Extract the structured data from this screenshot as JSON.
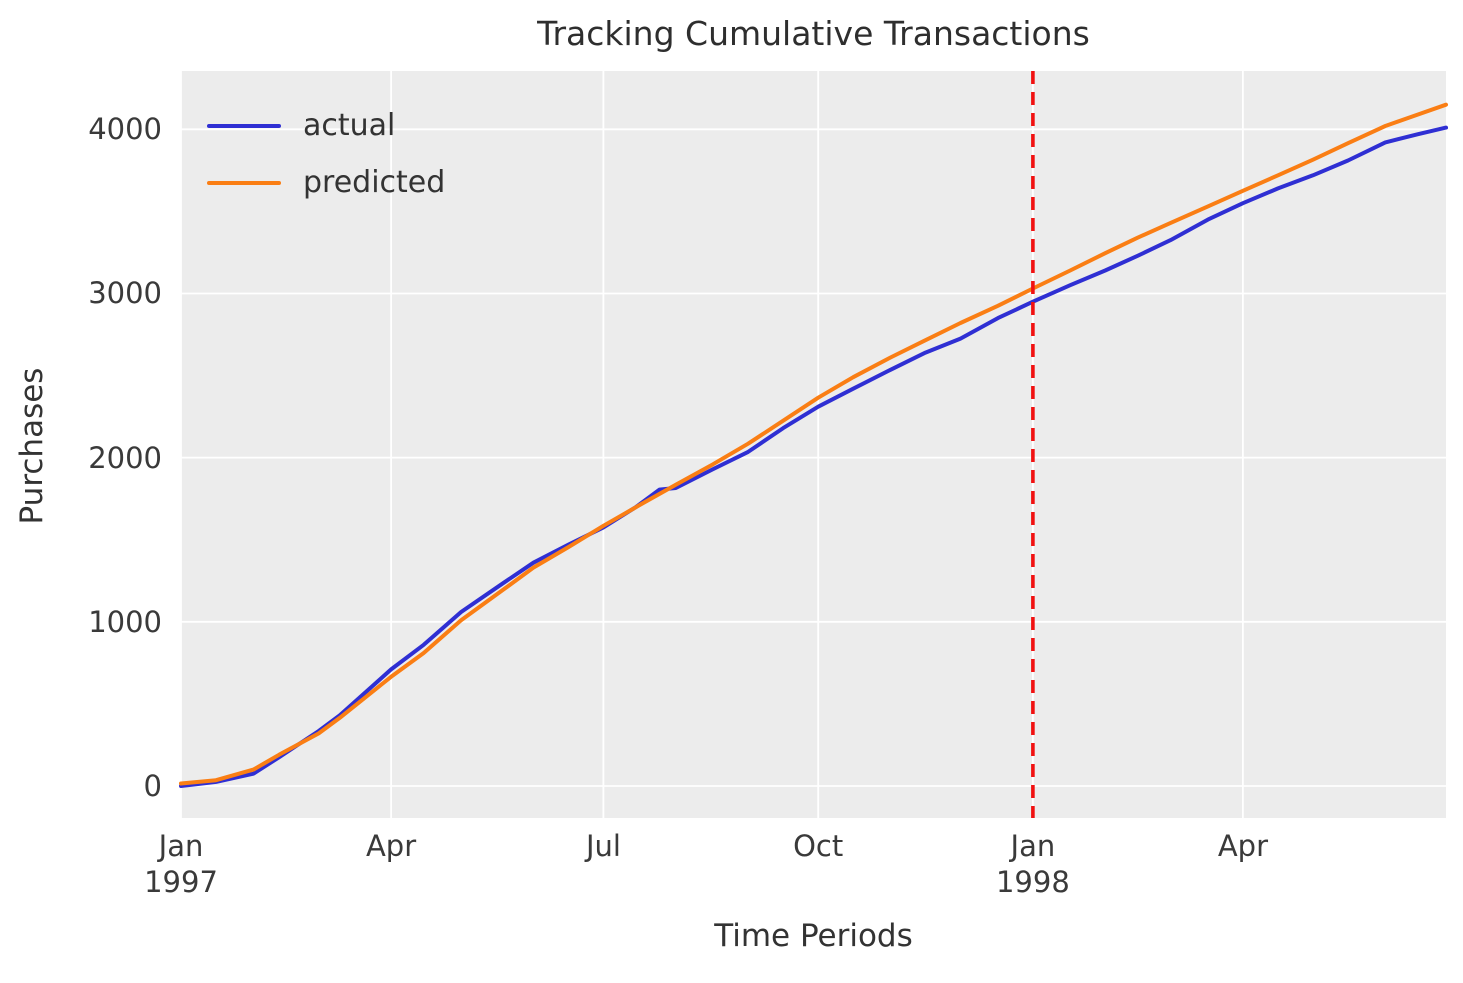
{
  "chart_data": {
    "type": "line",
    "title": "Tracking Cumulative Transactions",
    "xlabel": "Time Periods",
    "ylabel": "Purchases",
    "plot_bg": "#ececec",
    "grid_color": "#ffffff",
    "grid": true,
    "x_unit": "days since Jan 1 1997",
    "x_range_days": [
      0,
      542
    ],
    "ylim": [
      -195,
      4355
    ],
    "y_ticks": [
      0,
      1000,
      2000,
      3000,
      4000
    ],
    "x_ticks": [
      {
        "day": 0,
        "label": "Jan",
        "sublabel": "1997"
      },
      {
        "day": 90,
        "label": "Apr",
        "sublabel": ""
      },
      {
        "day": 181,
        "label": "Jul",
        "sublabel": ""
      },
      {
        "day": 273,
        "label": "Oct",
        "sublabel": ""
      },
      {
        "day": 365,
        "label": "Jan",
        "sublabel": "1998"
      },
      {
        "day": 455,
        "label": "Apr",
        "sublabel": ""
      }
    ],
    "legend": {
      "position": "upper left",
      "entries": [
        {
          "label": "actual",
          "color": "#2f2fd3"
        },
        {
          "label": "predicted",
          "color": "#fa7e14"
        }
      ]
    },
    "annotations": [
      {
        "type": "vline",
        "day": 365,
        "style": "dashed",
        "color": "#f11111",
        "meaning": "calibration/holdout split at Jan 1998"
      }
    ],
    "series": [
      {
        "name": "actual",
        "color": "#2f2fd3",
        "points": [
          [
            0,
            0
          ],
          [
            15,
            25
          ],
          [
            31,
            75
          ],
          [
            42,
            175
          ],
          [
            59,
            335
          ],
          [
            68,
            430
          ],
          [
            90,
            710
          ],
          [
            104,
            860
          ],
          [
            120,
            1060
          ],
          [
            138,
            1235
          ],
          [
            151,
            1360
          ],
          [
            166,
            1470
          ],
          [
            181,
            1575
          ],
          [
            195,
            1700
          ],
          [
            205,
            1805
          ],
          [
            212,
            1815
          ],
          [
            228,
            1930
          ],
          [
            243,
            2035
          ],
          [
            258,
            2180
          ],
          [
            273,
            2310
          ],
          [
            288,
            2420
          ],
          [
            304,
            2535
          ],
          [
            319,
            2640
          ],
          [
            334,
            2725
          ],
          [
            350,
            2850
          ],
          [
            365,
            2950
          ],
          [
            381,
            3050
          ],
          [
            396,
            3140
          ],
          [
            410,
            3230
          ],
          [
            424,
            3325
          ],
          [
            440,
            3450
          ],
          [
            455,
            3550
          ],
          [
            470,
            3640
          ],
          [
            485,
            3720
          ],
          [
            500,
            3810
          ],
          [
            516,
            3920
          ],
          [
            530,
            3970
          ],
          [
            542,
            4010
          ]
        ]
      },
      {
        "name": "predicted",
        "color": "#fa7e14",
        "points": [
          [
            0,
            15
          ],
          [
            15,
            35
          ],
          [
            31,
            100
          ],
          [
            42,
            190
          ],
          [
            59,
            320
          ],
          [
            68,
            415
          ],
          [
            90,
            665
          ],
          [
            104,
            810
          ],
          [
            120,
            1010
          ],
          [
            138,
            1195
          ],
          [
            151,
            1330
          ],
          [
            166,
            1455
          ],
          [
            181,
            1585
          ],
          [
            197,
            1715
          ],
          [
            212,
            1835
          ],
          [
            228,
            1960
          ],
          [
            243,
            2085
          ],
          [
            258,
            2225
          ],
          [
            273,
            2365
          ],
          [
            288,
            2490
          ],
          [
            304,
            2610
          ],
          [
            319,
            2715
          ],
          [
            334,
            2820
          ],
          [
            350,
            2925
          ],
          [
            365,
            3030
          ],
          [
            381,
            3140
          ],
          [
            396,
            3245
          ],
          [
            410,
            3340
          ],
          [
            424,
            3430
          ],
          [
            440,
            3530
          ],
          [
            455,
            3625
          ],
          [
            470,
            3720
          ],
          [
            485,
            3815
          ],
          [
            500,
            3915
          ],
          [
            516,
            4020
          ],
          [
            530,
            4090
          ],
          [
            542,
            4150
          ]
        ]
      }
    ]
  }
}
